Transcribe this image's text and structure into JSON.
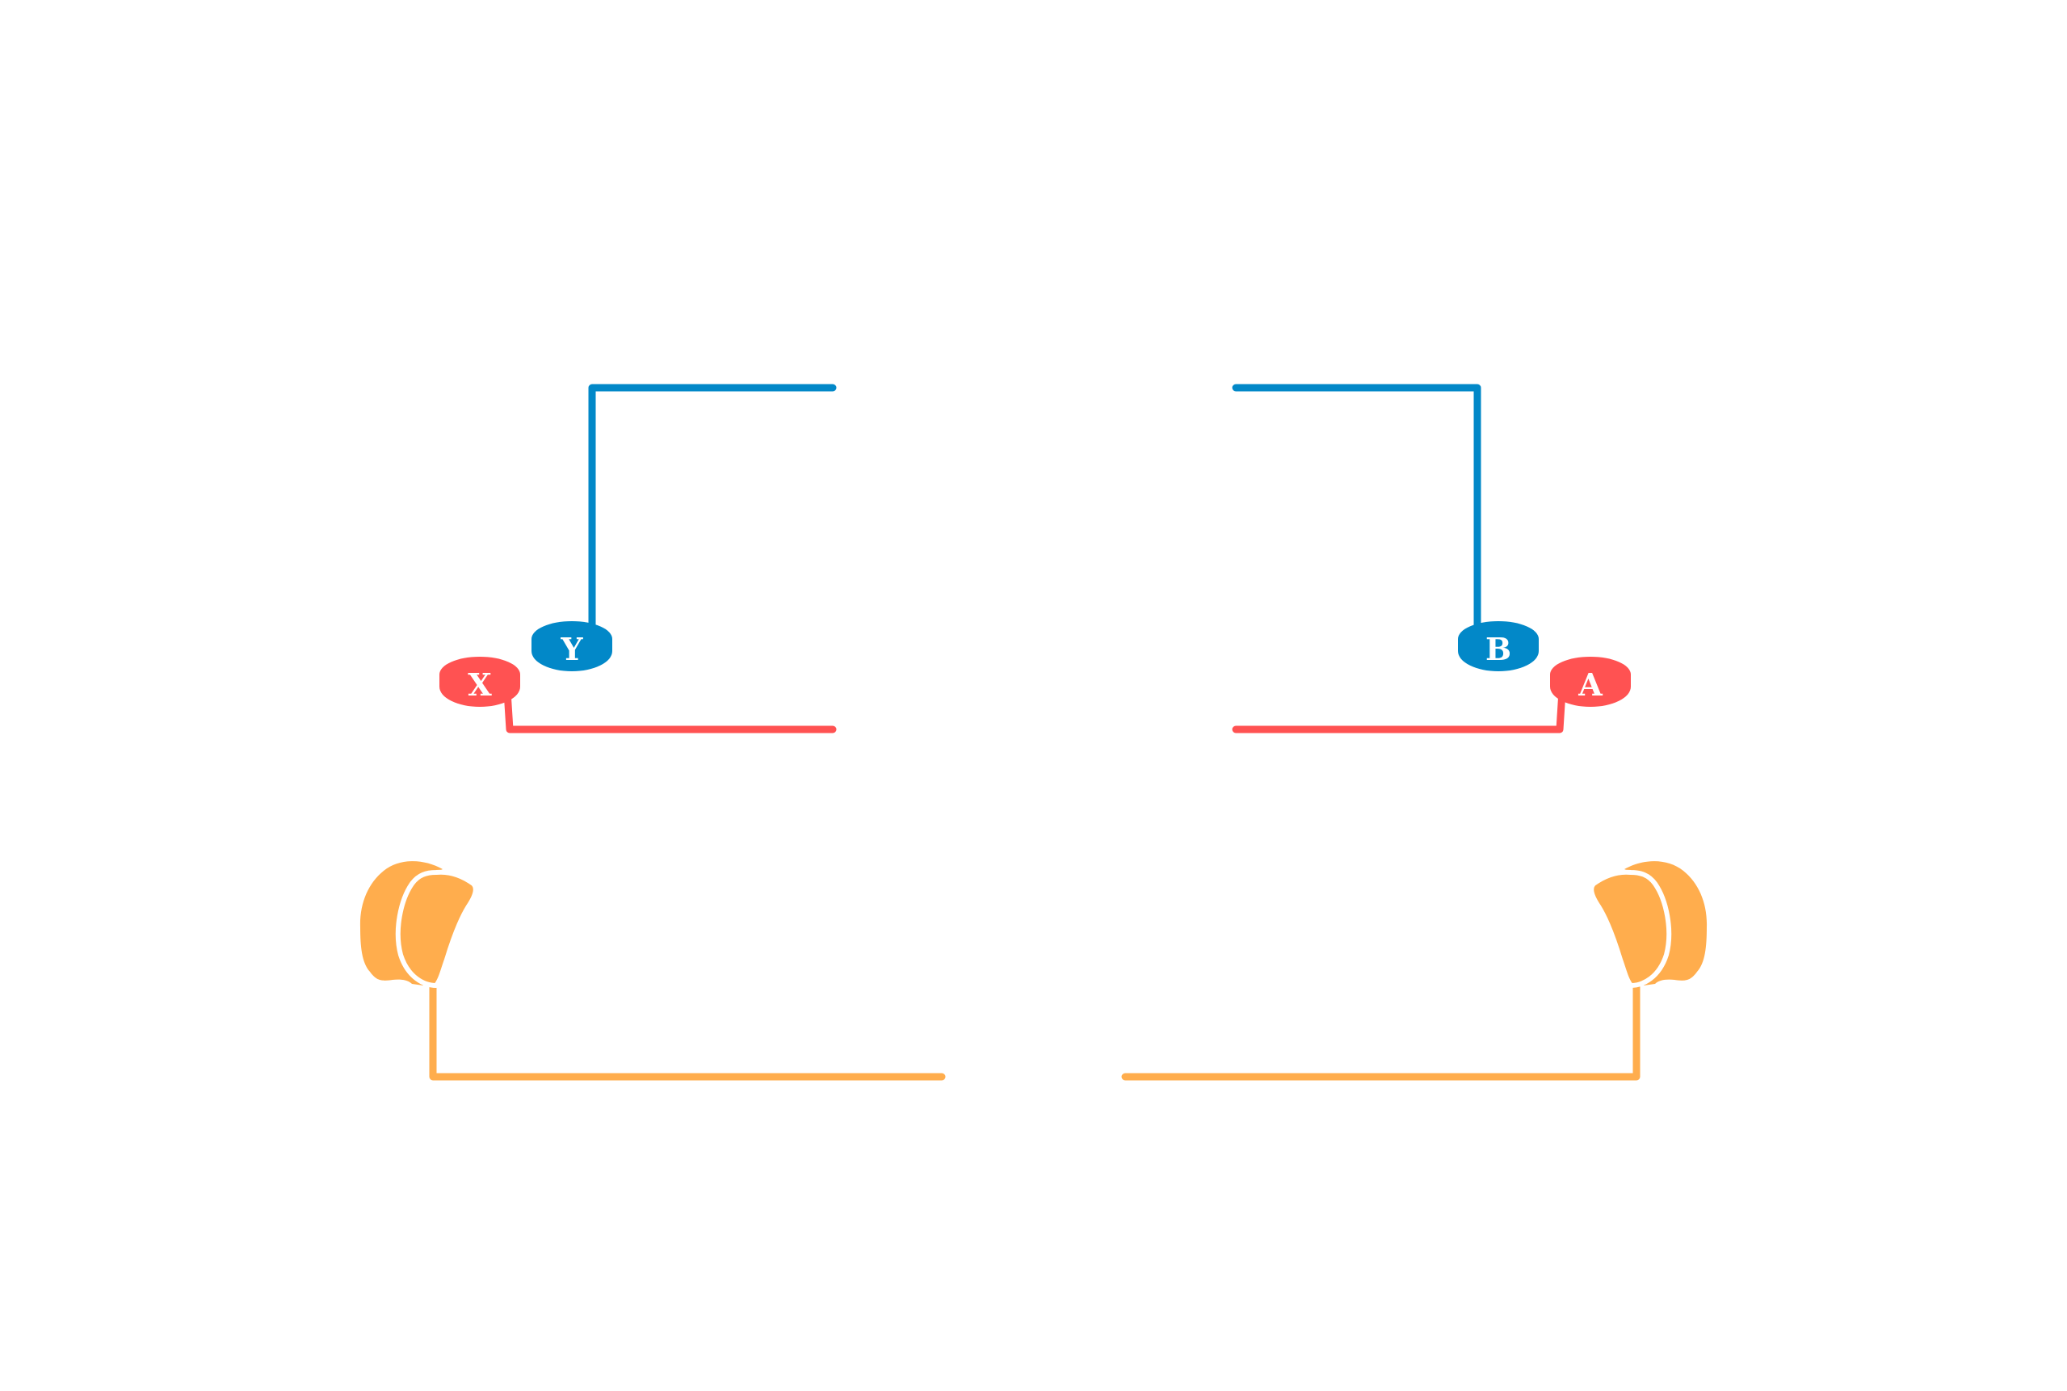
{
  "colors": {
    "background": "#ffffff",
    "upper_buttons": "#0288c8",
    "lower_buttons": "#ff5252",
    "triggers": "#ffad4d",
    "label": "#ffffff"
  },
  "buttons": {
    "y": {
      "label": "Y",
      "color": "#0288c8"
    },
    "x": {
      "label": "X",
      "color": "#ff5252"
    },
    "b": {
      "label": "B",
      "color": "#0288c8"
    },
    "a": {
      "label": "A",
      "color": "#ff5252"
    }
  },
  "triggers": {
    "left": {
      "icon": "left-trigger-icon",
      "color": "#ffad4d"
    },
    "right": {
      "icon": "right-trigger-icon",
      "color": "#ffad4d"
    }
  }
}
